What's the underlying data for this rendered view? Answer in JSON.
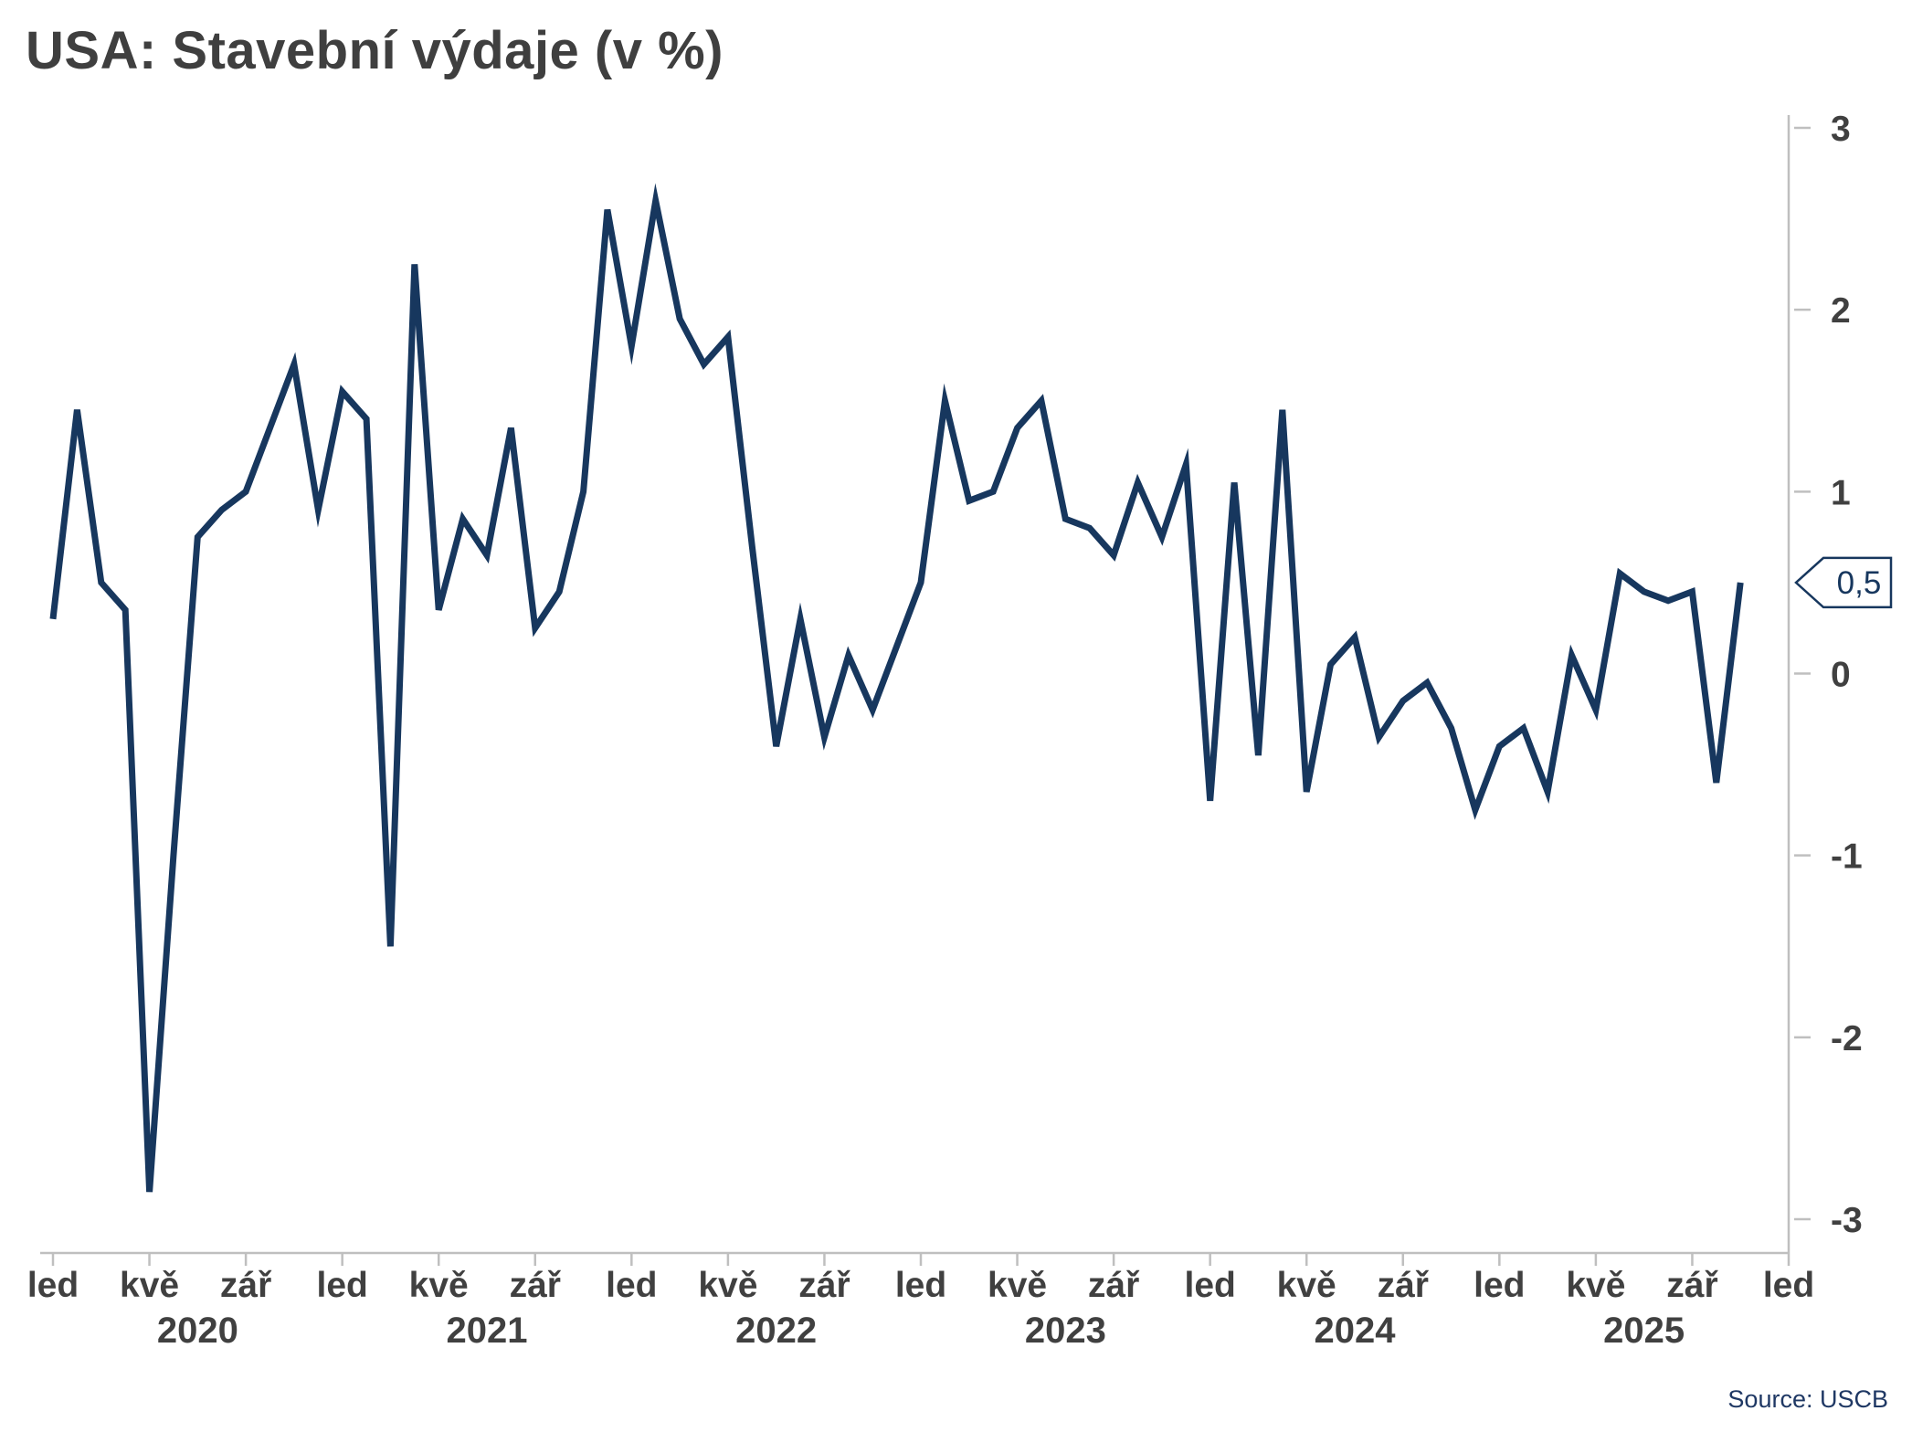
{
  "title": "USA: Stavební výdaje (v %)",
  "source": "Source: USCB",
  "callout": {
    "label": "0,5",
    "value": 0.5
  },
  "chart_data": {
    "type": "line",
    "title": "USA: Stavební výdaje (v %)",
    "ylabel": "%",
    "ylim": [
      -3,
      3
    ],
    "yticks": [
      3,
      2,
      1,
      0,
      -1,
      -2,
      -3
    ],
    "grid": false,
    "legend": false,
    "series_color": "#17375e",
    "axis_color": "#bfbfbf",
    "label_color": "#404040",
    "x_tick_labels": [
      "led",
      "kvě",
      "zář",
      "led",
      "kvě",
      "zář",
      "led",
      "kvě",
      "zář",
      "led",
      "kvě",
      "zář",
      "led",
      "kvě",
      "zář",
      "led",
      "kvě",
      "zář",
      "led"
    ],
    "year_labels": [
      "2020",
      "2021",
      "2022",
      "2023",
      "2024",
      "2025"
    ],
    "x_start": "led 2020",
    "frequency": "monthly",
    "values": [
      0.3,
      1.45,
      0.5,
      0.35,
      -2.85,
      -1.0,
      0.75,
      0.9,
      1.0,
      1.35,
      1.7,
      0.9,
      1.55,
      1.4,
      -1.5,
      2.25,
      0.35,
      0.85,
      0.65,
      1.35,
      0.25,
      0.45,
      1.0,
      2.55,
      1.8,
      2.6,
      1.95,
      1.7,
      1.85,
      0.7,
      -0.4,
      0.3,
      -0.35,
      0.1,
      -0.2,
      0.15,
      0.5,
      1.5,
      0.95,
      1.0,
      1.35,
      1.5,
      0.85,
      0.8,
      0.65,
      1.05,
      0.75,
      1.15,
      -0.7,
      1.05,
      -0.45,
      1.45,
      -0.65,
      0.05,
      0.2,
      -0.35,
      -0.15,
      -0.05,
      -0.3,
      -0.75,
      -0.4,
      -0.3,
      -0.65,
      0.1,
      -0.2,
      0.55,
      0.45,
      0.4,
      0.45,
      -0.6,
      0.5
    ]
  }
}
